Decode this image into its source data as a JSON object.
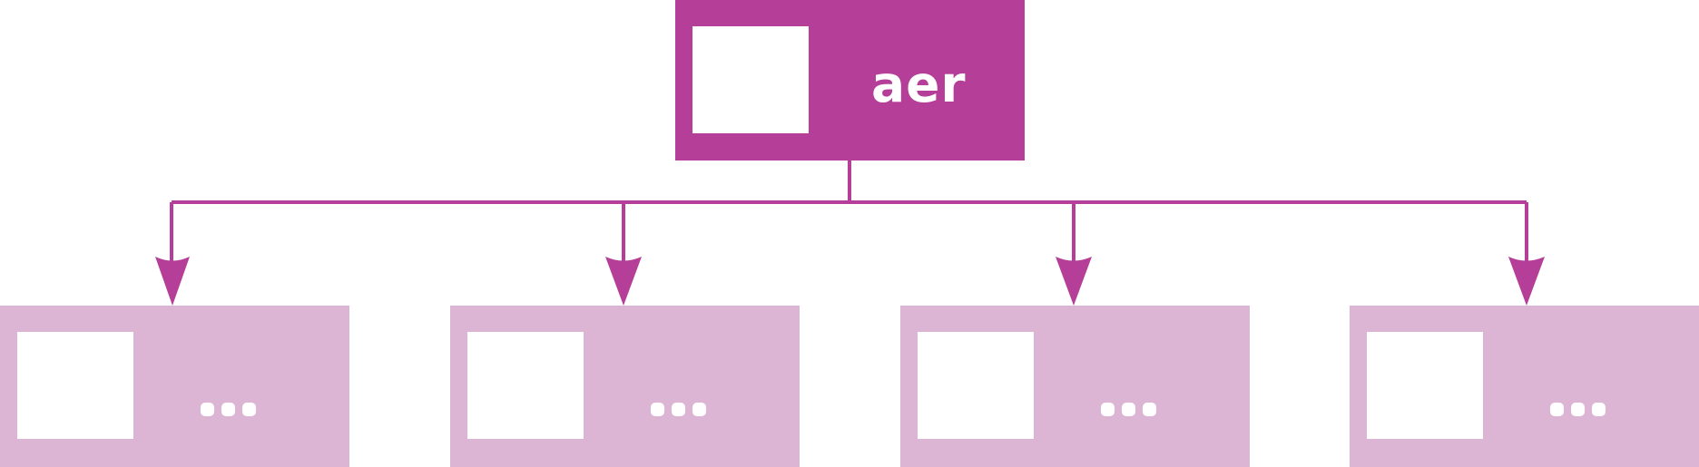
{
  "colors": {
    "root_fill": "#b53f98",
    "child_fill": "#ddb5d4",
    "connector": "#b53f98",
    "image_placeholder": "#ffffff"
  },
  "root": {
    "label": "aer",
    "image": "placeholder"
  },
  "children": [
    {
      "label": "...",
      "image": "placeholder"
    },
    {
      "label": "...",
      "image": "placeholder"
    },
    {
      "label": "...",
      "image": "placeholder"
    },
    {
      "label": "...",
      "image": "placeholder"
    }
  ]
}
